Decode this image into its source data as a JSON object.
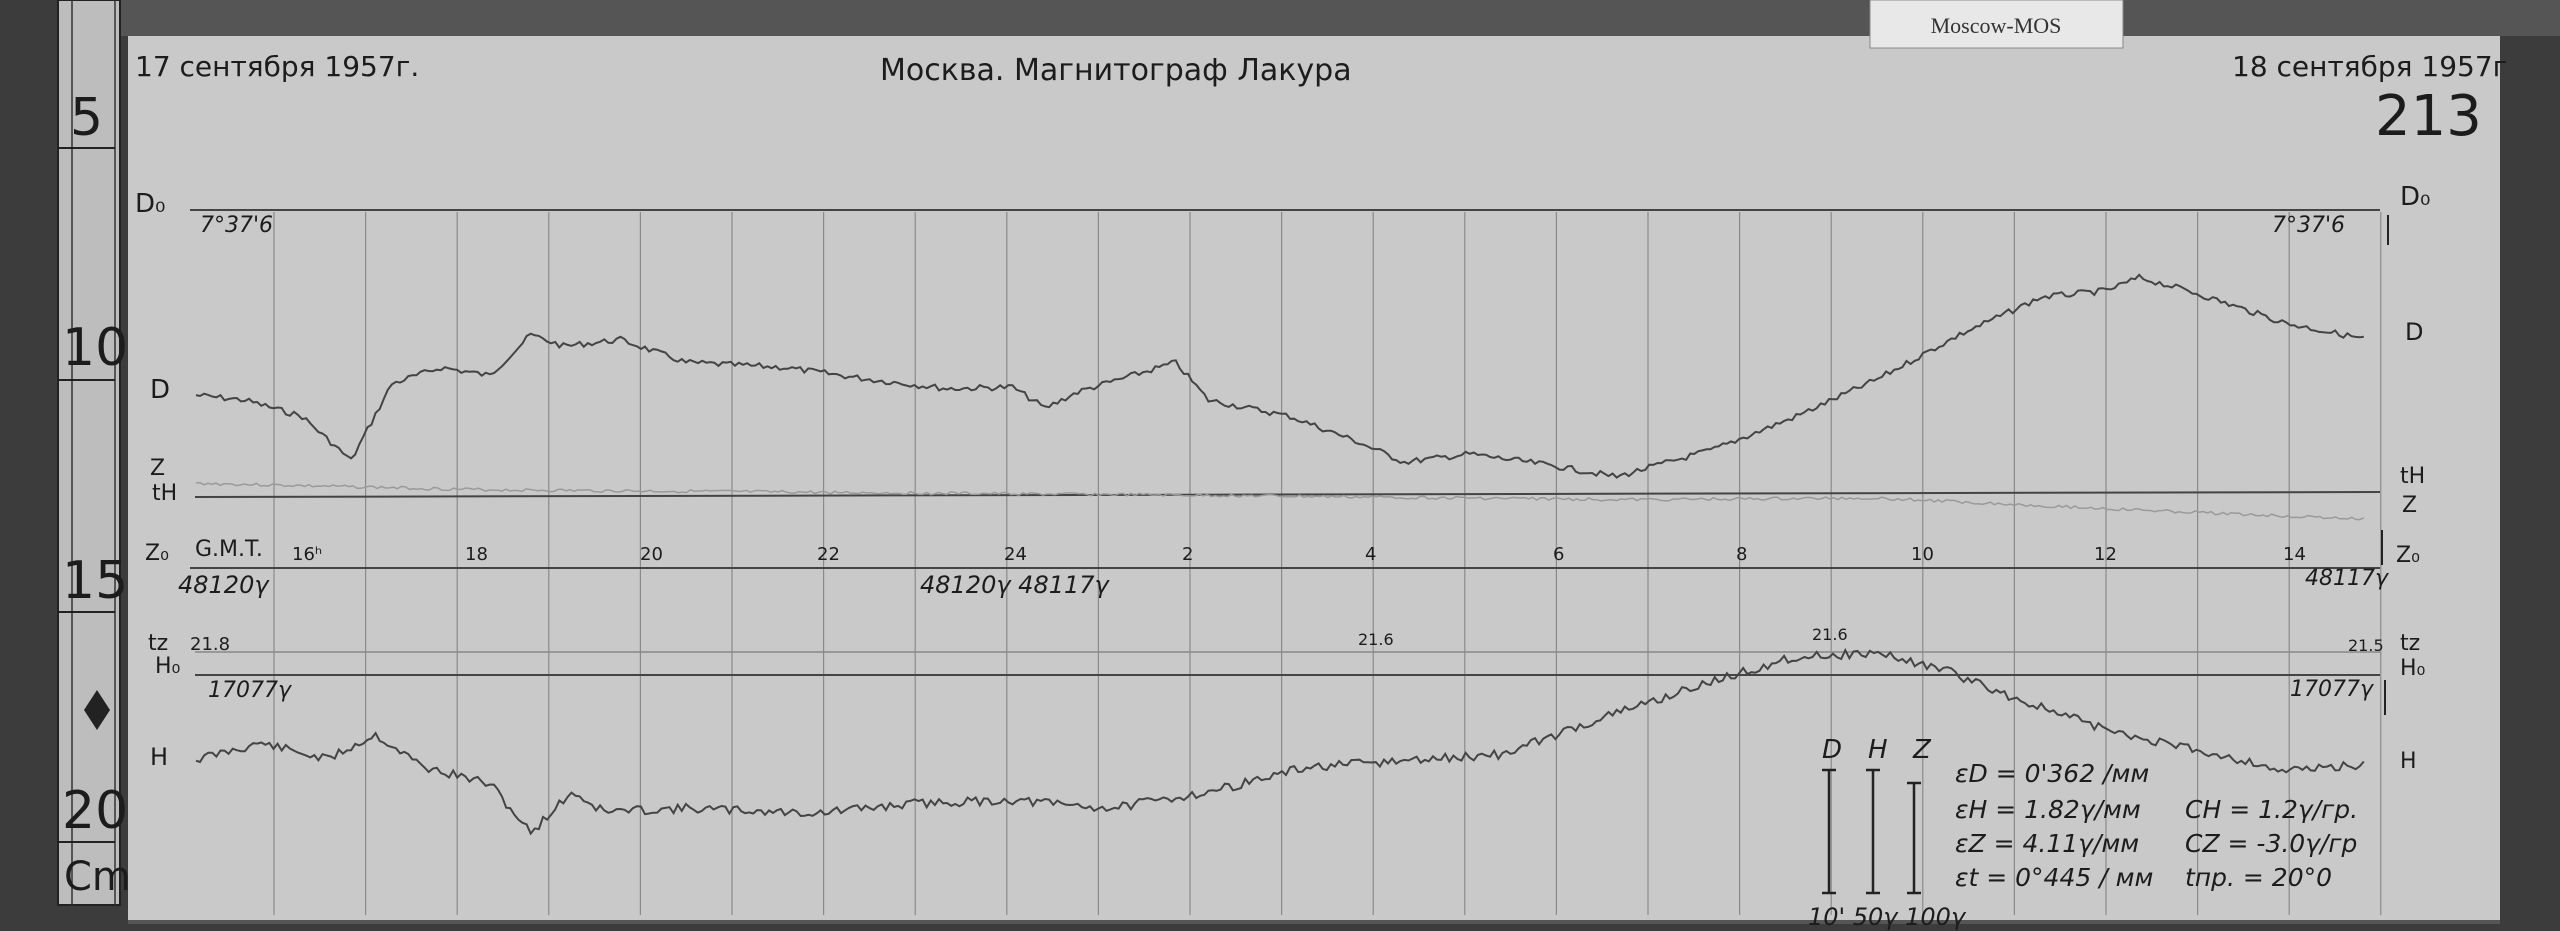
{
  "tag": "Moscow-MOS",
  "header": {
    "date_start": "17 сентября 1957г.",
    "title": "Москва. Магнитограф Лакура",
    "date_end": "18 сентября 1957г",
    "sheet_number": "213"
  },
  "ruler": {
    "marks": [
      "5",
      "10",
      "15",
      "20"
    ],
    "unit": "Cm"
  },
  "left_labels": {
    "d0": "D₀",
    "d0_value": "7°37'6",
    "d": "D",
    "z": "Z",
    "tH": "tH",
    "z0": "Z₀",
    "gmt": "G.M.T.",
    "z0_value": "48120γ",
    "tz": "tz",
    "tz_value": "21.8",
    "h0": "H₀",
    "h0_value": "17077γ",
    "h": "H"
  },
  "right_labels": {
    "d0": "D₀",
    "d0_value": "7°37'6",
    "d": "D",
    "tH": "tH",
    "z": "Z",
    "z0": "Z₀",
    "z0_value": "48117γ",
    "tz": "tz",
    "tz_value": "21.5",
    "h0": "H₀",
    "h0_value": "17077γ",
    "h": "H"
  },
  "mid_labels": {
    "z0_change": "48120γ  48117γ",
    "tz_mid1": "21.6",
    "tz_mid2": "21.6"
  },
  "time_axis": [
    "16ʰ",
    "18",
    "20",
    "22",
    "24",
    "2",
    "4",
    "6",
    "8",
    "10",
    "12",
    "14"
  ],
  "scale": {
    "headers": [
      "D",
      "H",
      "Z"
    ],
    "bar_label": "10'  50γ 100γ",
    "eps_d": "εD = 0'362 /мм",
    "eps_h": "εH = 1.82γ/мм",
    "c_h": "CH = 1.2γ/гр.",
    "eps_z": "εZ = 4.11γ/мм",
    "c_z": "CZ = -3.0γ/гр",
    "eps_t": "εt = 0°445 / мм",
    "t_pr": "tпр. = 20°0"
  },
  "colors": {
    "paper": "#c9c9c9",
    "ink": "#1c1c1c",
    "background": "#3a3a3a",
    "trace": "#4a4a4a"
  }
}
